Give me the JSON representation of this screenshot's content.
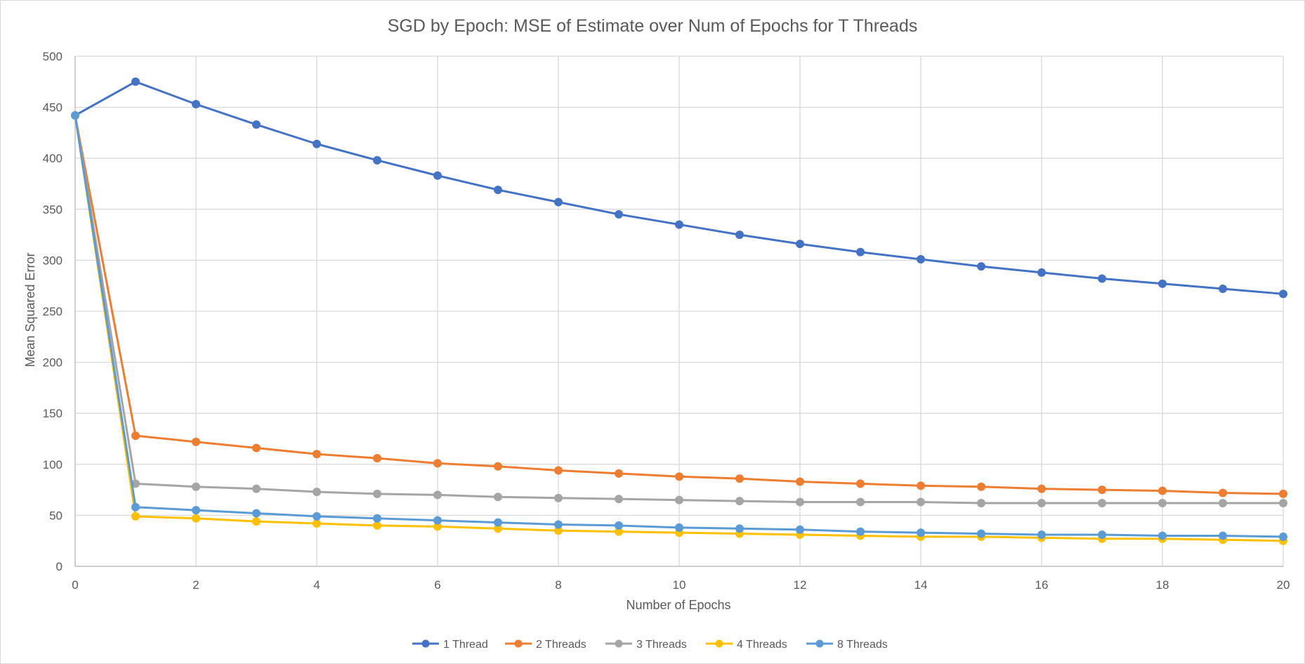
{
  "chart_data": {
    "type": "line",
    "title": "SGD by Epoch: MSE of Estimate over Num of Epochs for T Threads",
    "xlabel": "Number of Epochs",
    "ylabel": "Mean Squared Error",
    "xlim": [
      0,
      20
    ],
    "ylim": [
      0,
      500
    ],
    "x_ticks": [
      0,
      2,
      4,
      6,
      8,
      10,
      12,
      14,
      16,
      18,
      20
    ],
    "y_ticks": [
      0,
      50,
      100,
      150,
      200,
      250,
      300,
      350,
      400,
      450,
      500
    ],
    "grid": true,
    "legend_position": "bottom",
    "x": [
      0,
      1,
      2,
      3,
      4,
      5,
      6,
      7,
      8,
      9,
      10,
      11,
      12,
      13,
      14,
      15,
      16,
      17,
      18,
      19,
      20
    ],
    "series": [
      {
        "name": "1 Thread",
        "color": "#4472C4",
        "values": [
          442,
          475,
          453,
          433,
          414,
          398,
          383,
          369,
          357,
          345,
          335,
          325,
          316,
          308,
          301,
          294,
          288,
          282,
          277,
          272,
          267
        ]
      },
      {
        "name": "2 Threads",
        "color": "#ED7D31",
        "values": [
          442,
          128,
          122,
          116,
          110,
          106,
          101,
          98,
          94,
          91,
          88,
          86,
          83,
          81,
          79,
          78,
          76,
          75,
          74,
          72,
          71
        ]
      },
      {
        "name": "3 Threads",
        "color": "#A5A5A5",
        "values": [
          442,
          81,
          78,
          76,
          73,
          71,
          70,
          68,
          67,
          66,
          65,
          64,
          63,
          63,
          63,
          62,
          62,
          62,
          62,
          62,
          62
        ]
      },
      {
        "name": "4 Threads",
        "color": "#FFC000",
        "values": [
          442,
          49,
          47,
          44,
          42,
          40,
          39,
          37,
          35,
          34,
          33,
          32,
          31,
          30,
          29,
          29,
          28,
          27,
          27,
          26,
          25
        ]
      },
      {
        "name": "8 Threads",
        "color": "#5B9BD5",
        "values": [
          442,
          58,
          55,
          52,
          49,
          47,
          45,
          43,
          41,
          40,
          38,
          37,
          36,
          34,
          33,
          32,
          31,
          31,
          30,
          30,
          29
        ]
      }
    ]
  }
}
